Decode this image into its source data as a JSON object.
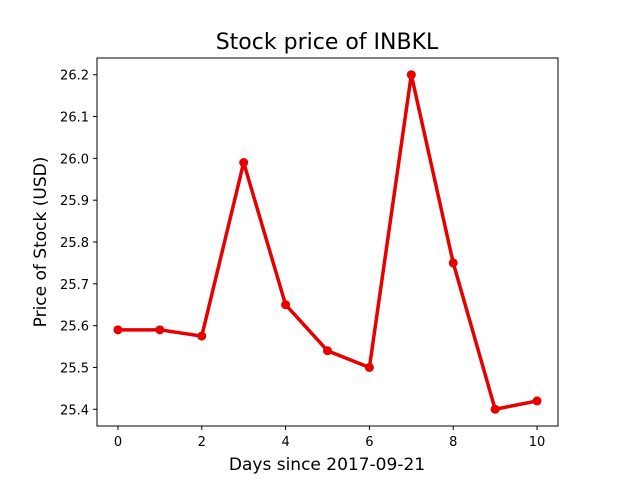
{
  "chart_data": {
    "type": "line",
    "title": "Stock price of INBKL",
    "xlabel": "Days since 2017-09-21",
    "ylabel": "Price of Stock (USD)",
    "x": [
      0,
      1,
      2,
      3,
      4,
      5,
      6,
      7,
      8,
      9,
      10
    ],
    "series": [
      {
        "values": [
          25.59,
          25.59,
          25.575,
          25.99,
          25.65,
          25.54,
          25.5,
          26.2,
          25.75,
          25.4,
          25.42
        ],
        "color": "#e60000",
        "marker": "circle"
      }
    ],
    "xlim": [
      -0.5,
      10.5
    ],
    "ylim": [
      25.36,
      26.24
    ],
    "xticks": [
      0,
      2,
      4,
      6,
      8,
      10
    ],
    "xtick_labels": [
      "0",
      "2",
      "4",
      "6",
      "8",
      "10"
    ],
    "yticks": [
      25.4,
      25.5,
      25.6,
      25.7,
      25.8,
      25.9,
      26.0,
      26.1,
      26.2
    ],
    "ytick_labels": [
      "25.4",
      "25.5",
      "25.6",
      "25.7",
      "25.8",
      "25.9",
      "26.0",
      "26.1",
      "26.2"
    ],
    "grid": false,
    "legend": "none"
  }
}
